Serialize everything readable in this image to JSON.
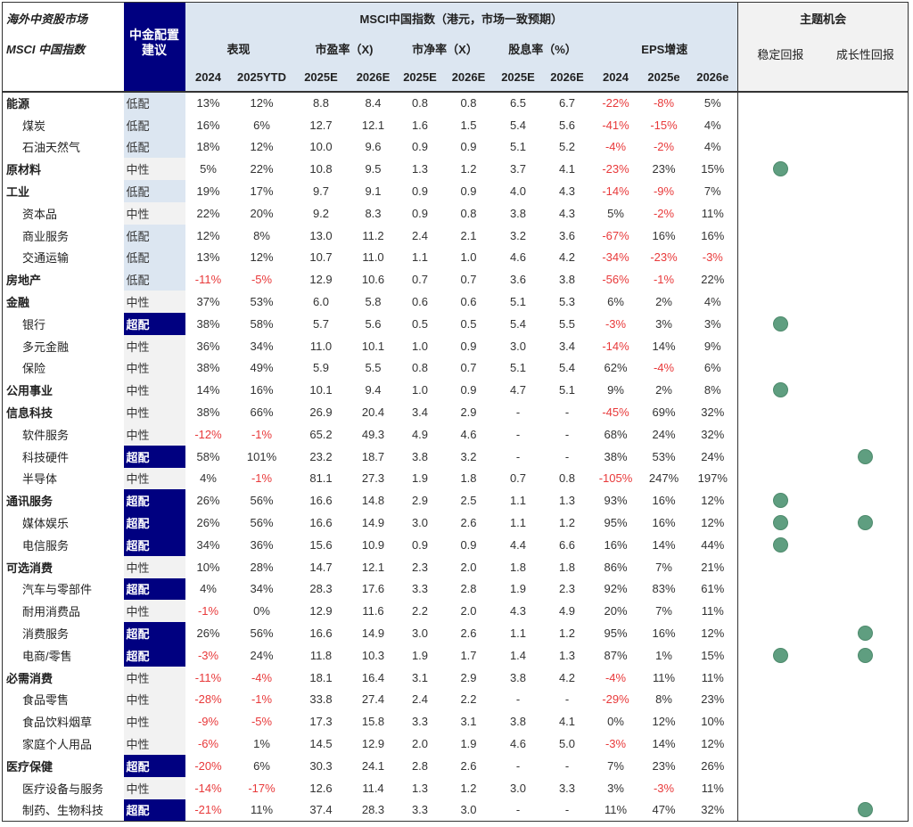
{
  "header": {
    "market_label": "海外中资股市场",
    "index_label": "MSCI 中国指数",
    "rating_label": "中金配置建议",
    "msci_group": "MSCI中国指数（港元，市场一致预期）",
    "theme_group": "主题机会",
    "sub_groups": [
      "表现",
      "市盈率（X)",
      "市净率（X）",
      "股息率（%）",
      "EPS增速"
    ],
    "years": [
      "2024",
      "2025YTD",
      "2025E",
      "2026E",
      "2025E",
      "2026E",
      "2025E",
      "2026E",
      "2024",
      "2025e",
      "2026e"
    ],
    "theme_cols": [
      "稳定回报",
      "成长性回报"
    ]
  },
  "colors": {
    "underweight_bg": "#dce6f1",
    "neutral_bg": "#f2f2f2",
    "overweight_bg": "#000080",
    "negative_text": "#e8393a",
    "theme_dot": "#5f9e80"
  },
  "rows": [
    {
      "name": "能源",
      "level": 0,
      "rating": "低配",
      "values": [
        "13%",
        "12%",
        "8.8",
        "8.4",
        "0.8",
        "0.8",
        "6.5",
        "6.7",
        "-22%",
        "-8%",
        "5%"
      ],
      "stable": false,
      "growth": false
    },
    {
      "name": "煤炭",
      "level": 1,
      "rating": "低配",
      "values": [
        "16%",
        "6%",
        "12.7",
        "12.1",
        "1.6",
        "1.5",
        "5.4",
        "5.6",
        "-41%",
        "-15%",
        "4%"
      ],
      "stable": false,
      "growth": false
    },
    {
      "name": "石油天然气",
      "level": 1,
      "rating": "低配",
      "values": [
        "18%",
        "12%",
        "10.0",
        "9.6",
        "0.9",
        "0.9",
        "5.1",
        "5.2",
        "-4%",
        "-2%",
        "4%"
      ],
      "stable": false,
      "growth": false
    },
    {
      "name": "原材料",
      "level": 0,
      "rating": "中性",
      "values": [
        "5%",
        "22%",
        "10.8",
        "9.5",
        "1.3",
        "1.2",
        "3.7",
        "4.1",
        "-23%",
        "23%",
        "15%"
      ],
      "stable": true,
      "growth": false
    },
    {
      "name": "工业",
      "level": 0,
      "rating": "低配",
      "values": [
        "19%",
        "17%",
        "9.7",
        "9.1",
        "0.9",
        "0.9",
        "4.0",
        "4.3",
        "-14%",
        "-9%",
        "7%"
      ],
      "stable": false,
      "growth": false
    },
    {
      "name": "资本品",
      "level": 1,
      "rating": "中性",
      "values": [
        "22%",
        "20%",
        "9.2",
        "8.3",
        "0.9",
        "0.8",
        "3.8",
        "4.3",
        "5%",
        "-2%",
        "11%"
      ],
      "stable": false,
      "growth": false
    },
    {
      "name": "商业服务",
      "level": 1,
      "rating": "低配",
      "values": [
        "12%",
        "8%",
        "13.0",
        "11.2",
        "2.4",
        "2.1",
        "3.2",
        "3.6",
        "-67%",
        "16%",
        "16%"
      ],
      "stable": false,
      "growth": false
    },
    {
      "name": "交通运输",
      "level": 1,
      "rating": "低配",
      "values": [
        "13%",
        "12%",
        "10.7",
        "11.0",
        "1.1",
        "1.0",
        "4.6",
        "4.2",
        "-34%",
        "-23%",
        "-3%"
      ],
      "stable": false,
      "growth": false
    },
    {
      "name": "房地产",
      "level": 0,
      "rating": "低配",
      "values": [
        "-11%",
        "-5%",
        "12.9",
        "10.6",
        "0.7",
        "0.7",
        "3.6",
        "3.8",
        "-56%",
        "-1%",
        "22%"
      ],
      "stable": false,
      "growth": false
    },
    {
      "name": "金融",
      "level": 0,
      "rating": "中性",
      "values": [
        "37%",
        "53%",
        "6.0",
        "5.8",
        "0.6",
        "0.6",
        "5.1",
        "5.3",
        "6%",
        "2%",
        "4%"
      ],
      "stable": false,
      "growth": false
    },
    {
      "name": "银行",
      "level": 1,
      "rating": "超配",
      "values": [
        "38%",
        "58%",
        "5.7",
        "5.6",
        "0.5",
        "0.5",
        "5.4",
        "5.5",
        "-3%",
        "3%",
        "3%"
      ],
      "stable": true,
      "growth": false
    },
    {
      "name": "多元金融",
      "level": 1,
      "rating": "中性",
      "values": [
        "36%",
        "34%",
        "11.0",
        "10.1",
        "1.0",
        "0.9",
        "3.0",
        "3.4",
        "-14%",
        "14%",
        "9%"
      ],
      "stable": false,
      "growth": false
    },
    {
      "name": "保险",
      "level": 1,
      "rating": "中性",
      "values": [
        "38%",
        "49%",
        "5.9",
        "5.5",
        "0.8",
        "0.7",
        "5.1",
        "5.4",
        "62%",
        "-4%",
        "6%"
      ],
      "stable": false,
      "growth": false
    },
    {
      "name": "公用事业",
      "level": 0,
      "rating": "中性",
      "values": [
        "14%",
        "16%",
        "10.1",
        "9.4",
        "1.0",
        "0.9",
        "4.7",
        "5.1",
        "9%",
        "2%",
        "8%"
      ],
      "stable": true,
      "growth": false
    },
    {
      "name": "信息科技",
      "level": 0,
      "rating": "中性",
      "values": [
        "38%",
        "66%",
        "26.9",
        "20.4",
        "3.4",
        "2.9",
        "-",
        "-",
        "-45%",
        "69%",
        "32%"
      ],
      "stable": false,
      "growth": false
    },
    {
      "name": "软件服务",
      "level": 1,
      "rating": "中性",
      "values": [
        "-12%",
        "-1%",
        "65.2",
        "49.3",
        "4.9",
        "4.6",
        "-",
        "-",
        "68%",
        "24%",
        "32%"
      ],
      "stable": false,
      "growth": false
    },
    {
      "name": "科技硬件",
      "level": 1,
      "rating": "超配",
      "values": [
        "58%",
        "101%",
        "23.2",
        "18.7",
        "3.8",
        "3.2",
        "-",
        "-",
        "38%",
        "53%",
        "24%"
      ],
      "stable": false,
      "growth": true
    },
    {
      "name": "半导体",
      "level": 1,
      "rating": "中性",
      "values": [
        "4%",
        "-1%",
        "81.1",
        "27.3",
        "1.9",
        "1.8",
        "0.7",
        "0.8",
        "-105%",
        "247%",
        "197%"
      ],
      "stable": false,
      "growth": false
    },
    {
      "name": "通讯服务",
      "level": 0,
      "rating": "超配",
      "values": [
        "26%",
        "56%",
        "16.6",
        "14.8",
        "2.9",
        "2.5",
        "1.1",
        "1.3",
        "93%",
        "16%",
        "12%"
      ],
      "stable": true,
      "growth": false
    },
    {
      "name": "媒体娱乐",
      "level": 1,
      "rating": "超配",
      "values": [
        "26%",
        "56%",
        "16.6",
        "14.9",
        "3.0",
        "2.6",
        "1.1",
        "1.2",
        "95%",
        "16%",
        "12%"
      ],
      "stable": true,
      "growth": true
    },
    {
      "name": "电信服务",
      "level": 1,
      "rating": "超配",
      "values": [
        "34%",
        "36%",
        "15.6",
        "10.9",
        "0.9",
        "0.9",
        "4.4",
        "6.6",
        "16%",
        "14%",
        "44%"
      ],
      "stable": true,
      "growth": false
    },
    {
      "name": "可选消费",
      "level": 0,
      "rating": "中性",
      "values": [
        "10%",
        "28%",
        "14.7",
        "12.1",
        "2.3",
        "2.0",
        "1.8",
        "1.8",
        "86%",
        "7%",
        "21%"
      ],
      "stable": false,
      "growth": false
    },
    {
      "name": "汽车与零部件",
      "level": 1,
      "rating": "超配",
      "values": [
        "4%",
        "34%",
        "28.3",
        "17.6",
        "3.3",
        "2.8",
        "1.9",
        "2.3",
        "92%",
        "83%",
        "61%"
      ],
      "stable": false,
      "growth": false
    },
    {
      "name": "耐用消费品",
      "level": 1,
      "rating": "中性",
      "values": [
        "-1%",
        "0%",
        "12.9",
        "11.6",
        "2.2",
        "2.0",
        "4.3",
        "4.9",
        "20%",
        "7%",
        "11%"
      ],
      "stable": false,
      "growth": false
    },
    {
      "name": "消费服务",
      "level": 1,
      "rating": "超配",
      "values": [
        "26%",
        "56%",
        "16.6",
        "14.9",
        "3.0",
        "2.6",
        "1.1",
        "1.2",
        "95%",
        "16%",
        "12%"
      ],
      "stable": false,
      "growth": true
    },
    {
      "name": "电商/零售",
      "level": 1,
      "rating": "超配",
      "values": [
        "-3%",
        "24%",
        "11.8",
        "10.3",
        "1.9",
        "1.7",
        "1.4",
        "1.3",
        "87%",
        "1%",
        "15%"
      ],
      "stable": true,
      "growth": true
    },
    {
      "name": "必需消费",
      "level": 0,
      "rating": "中性",
      "values": [
        "-11%",
        "-4%",
        "18.1",
        "16.4",
        "3.1",
        "2.9",
        "3.8",
        "4.2",
        "-4%",
        "11%",
        "11%"
      ],
      "stable": false,
      "growth": false
    },
    {
      "name": "食品零售",
      "level": 1,
      "rating": "中性",
      "values": [
        "-28%",
        "-1%",
        "33.8",
        "27.4",
        "2.4",
        "2.2",
        "-",
        "-",
        "-29%",
        "8%",
        "23%"
      ],
      "stable": false,
      "growth": false
    },
    {
      "name": "食品饮料烟草",
      "level": 1,
      "rating": "中性",
      "values": [
        "-9%",
        "-5%",
        "17.3",
        "15.8",
        "3.3",
        "3.1",
        "3.8",
        "4.1",
        "0%",
        "12%",
        "10%"
      ],
      "stable": false,
      "growth": false
    },
    {
      "name": "家庭个人用品",
      "level": 1,
      "rating": "中性",
      "values": [
        "-6%",
        "1%",
        "14.5",
        "12.9",
        "2.0",
        "1.9",
        "4.6",
        "5.0",
        "-3%",
        "14%",
        "12%"
      ],
      "stable": false,
      "growth": false
    },
    {
      "name": "医疗保健",
      "level": 0,
      "rating": "超配",
      "values": [
        "-20%",
        "6%",
        "30.3",
        "24.1",
        "2.8",
        "2.6",
        "-",
        "-",
        "7%",
        "23%",
        "26%"
      ],
      "stable": false,
      "growth": false
    },
    {
      "name": "医疗设备与服务",
      "level": 1,
      "rating": "中性",
      "values": [
        "-14%",
        "-17%",
        "12.6",
        "11.4",
        "1.3",
        "1.2",
        "3.0",
        "3.3",
        "3%",
        "-3%",
        "11%"
      ],
      "stable": false,
      "growth": false
    },
    {
      "name": "制药、生物科技",
      "level": 1,
      "rating": "超配",
      "values": [
        "-21%",
        "11%",
        "37.4",
        "28.3",
        "3.3",
        "3.0",
        "-",
        "-",
        "11%",
        "47%",
        "32%"
      ],
      "stable": false,
      "growth": true
    }
  ]
}
